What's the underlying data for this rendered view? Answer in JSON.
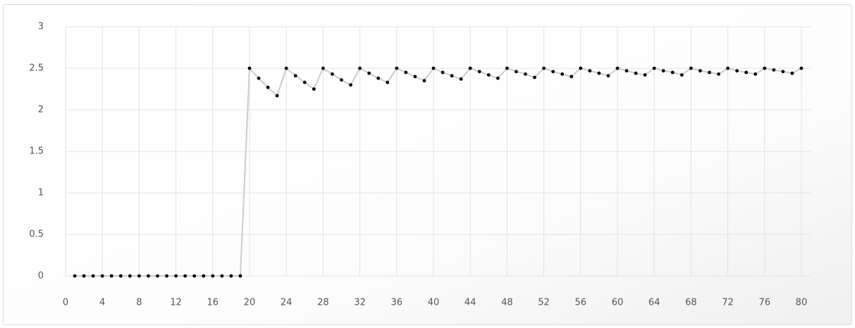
{
  "chart_data": {
    "type": "line",
    "x": [
      1,
      2,
      3,
      4,
      5,
      6,
      7,
      8,
      9,
      10,
      11,
      12,
      13,
      14,
      15,
      16,
      17,
      18,
      19,
      20,
      21,
      22,
      23,
      24,
      25,
      26,
      27,
      28,
      29,
      30,
      31,
      32,
      33,
      34,
      35,
      36,
      37,
      38,
      39,
      40,
      41,
      42,
      43,
      44,
      45,
      46,
      47,
      48,
      49,
      50,
      51,
      52,
      53,
      54,
      55,
      56,
      57,
      58,
      59,
      60,
      61,
      62,
      63,
      64,
      65,
      66,
      67,
      68,
      69,
      70,
      71,
      72,
      73,
      74,
      75,
      76,
      77,
      78,
      79,
      80
    ],
    "series": [
      {
        "color": "#cccccc",
        "marker_color": "#000000",
        "values": [
          0,
          0,
          0,
          0,
          0,
          0,
          0,
          0,
          0,
          0,
          0,
          0,
          0,
          0,
          0,
          0,
          0,
          0,
          0,
          2.5,
          2.38,
          2.27,
          2.17,
          2.5,
          2.41,
          2.33,
          2.25,
          2.5,
          2.43,
          2.36,
          2.3,
          2.5,
          2.44,
          2.38,
          2.33,
          2.5,
          2.45,
          2.4,
          2.35,
          2.5,
          2.45,
          2.41,
          2.37,
          2.5,
          2.46,
          2.42,
          2.38,
          2.5,
          2.46,
          2.43,
          2.39,
          2.5,
          2.46,
          2.43,
          2.4,
          2.5,
          2.47,
          2.44,
          2.41,
          2.5,
          2.47,
          2.44,
          2.42,
          2.5,
          2.47,
          2.45,
          2.42,
          2.5,
          2.47,
          2.45,
          2.43,
          2.5,
          2.47,
          2.45,
          2.43,
          2.5,
          2.48,
          2.46,
          2.44,
          2.5
        ]
      }
    ],
    "xlim": [
      0,
      81
    ],
    "xticks": [
      0,
      4,
      8,
      12,
      16,
      20,
      24,
      28,
      32,
      36,
      40,
      44,
      48,
      52,
      56,
      60,
      64,
      68,
      72,
      76,
      80
    ],
    "ylim": [
      0,
      3
    ],
    "yticks": [
      0,
      0.5,
      1,
      1.5,
      2,
      2.5,
      3
    ],
    "grid": true
  }
}
